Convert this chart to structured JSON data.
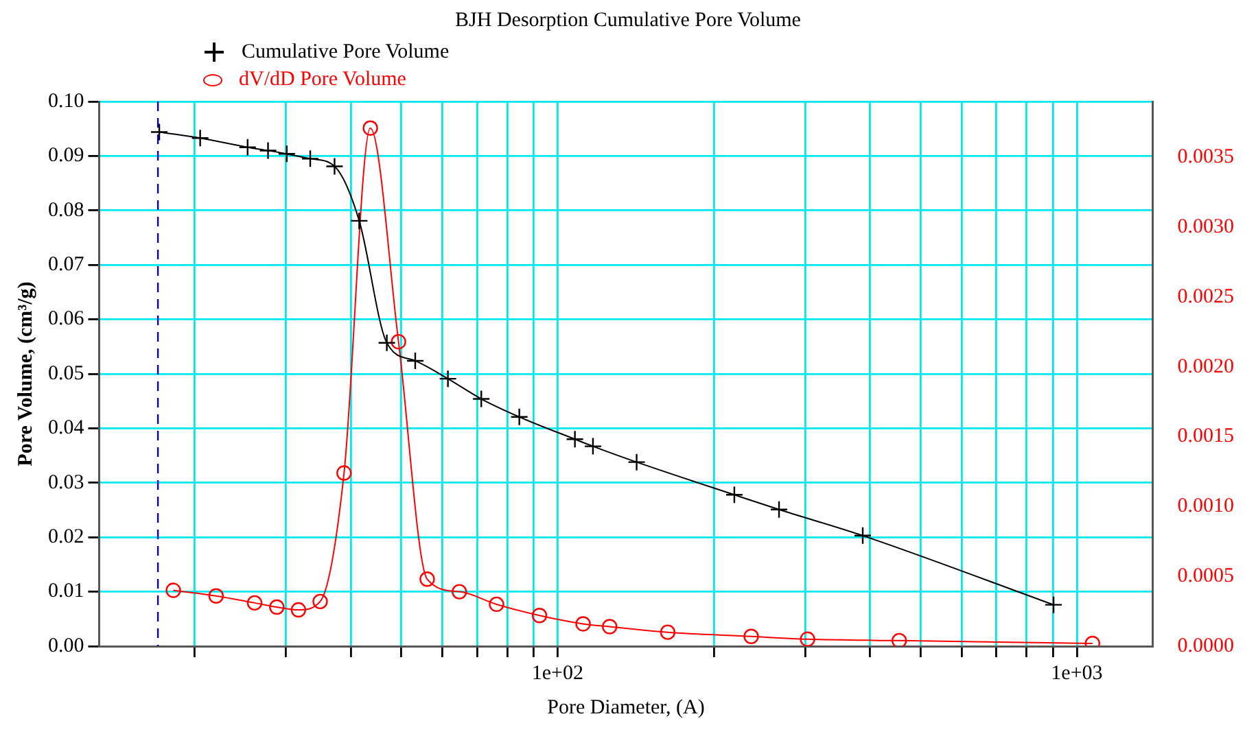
{
  "chart_data": {
    "type": "line",
    "title": "BJH Desorption Cumulative Pore Volume",
    "xlabel": "Pore Diameter, (A)",
    "ylabel": "Pore Volume, (cm³/g)",
    "log": "x",
    "grid": true,
    "legend": "top left",
    "xlim": [
      13.1,
      1400
    ],
    "xticks": [
      {
        "value": 20,
        "label": null
      },
      {
        "value": 30,
        "label": null
      },
      {
        "value": 40,
        "label": null
      },
      {
        "value": 50,
        "label": null
      },
      {
        "value": 60,
        "label": null
      },
      {
        "value": 70,
        "label": null
      },
      {
        "value": 80,
        "label": null
      },
      {
        "value": 90,
        "label": null
      },
      {
        "value": 100,
        "label": "1e+02"
      },
      {
        "value": 200,
        "label": null
      },
      {
        "value": 300,
        "label": null
      },
      {
        "value": 400,
        "label": null
      },
      {
        "value": 500,
        "label": null
      },
      {
        "value": 600,
        "label": null
      },
      {
        "value": 700,
        "label": null
      },
      {
        "value": 800,
        "label": null
      },
      {
        "value": 900,
        "label": null
      },
      {
        "value": 1000,
        "label": "1e+03"
      }
    ],
    "ylim": [
      0,
      0.1
    ],
    "yticks": [
      {
        "value": 0,
        "label": "0.00"
      },
      {
        "value": 0.01,
        "label": "0.01"
      },
      {
        "value": 0.02,
        "label": "0.02"
      },
      {
        "value": 0.03,
        "label": "0.03"
      },
      {
        "value": 0.04,
        "label": "0.04"
      },
      {
        "value": 0.05,
        "label": "0.05"
      },
      {
        "value": 0.06,
        "label": "0.06"
      },
      {
        "value": 0.07,
        "label": "0.07"
      },
      {
        "value": 0.08,
        "label": "0.08"
      },
      {
        "value": 0.09,
        "label": "0.09"
      },
      {
        "value": 0.1,
        "label": "0.10"
      }
    ],
    "y2lim": [
      0,
      0.0039
    ],
    "y2ticks": [
      {
        "value": 0,
        "label": "0.0000"
      },
      {
        "value": 0.0005,
        "label": "0.0005"
      },
      {
        "value": 0.001,
        "label": "0.0010"
      },
      {
        "value": 0.0015,
        "label": "0.0015"
      },
      {
        "value": 0.002,
        "label": "0.0020"
      },
      {
        "value": 0.0025,
        "label": "0.0025"
      },
      {
        "value": 0.003,
        "label": "0.0030"
      },
      {
        "value": 0.0035,
        "label": "0.0035"
      }
    ],
    "ref_lines": [
      {
        "axis": "x",
        "value": 17,
        "color": "#0000cc",
        "line_style": "dashed"
      }
    ],
    "series": [
      {
        "name": "Cumulative Pore Volume",
        "color": "#000000",
        "marker": "cross",
        "x": [
          17.1,
          20.5,
          25.3,
          27.7,
          30.1,
          33.4,
          37.2,
          41.5,
          46.9,
          53.2,
          61.5,
          71.3,
          84.4,
          108,
          117,
          142,
          219,
          267,
          387,
          902
        ],
        "values": [
          0.0944,
          0.0933,
          0.0916,
          0.091,
          0.0904,
          0.0895,
          0.0881,
          0.0781,
          0.0557,
          0.0524,
          0.0491,
          0.0454,
          0.0421,
          0.038,
          0.0367,
          0.0338,
          0.0278,
          0.0251,
          0.0203,
          0.0076
        ]
      },
      {
        "name": "dV/dD Pore Volume",
        "color": "#ff0000",
        "marker": "circle",
        "axis": "y2",
        "x": [
          18.2,
          22,
          26.1,
          28.8,
          31.7,
          34.9,
          38.8,
          43.6,
          49.4,
          56.1,
          64.7,
          76.3,
          92.3,
          112,
          126,
          163,
          236,
          303,
          455,
          1072
        ],
        "values": [
          0.0004,
          0.00036,
          0.00031,
          0.00028,
          0.00026,
          0.00032,
          0.00124,
          0.00371,
          0.00218,
          0.00048,
          0.00039,
          0.0003,
          0.00022,
          0.00016,
          0.00014,
          0.0001,
          7e-05,
          5e-05,
          4e-05,
          2e-05
        ]
      }
    ]
  }
}
